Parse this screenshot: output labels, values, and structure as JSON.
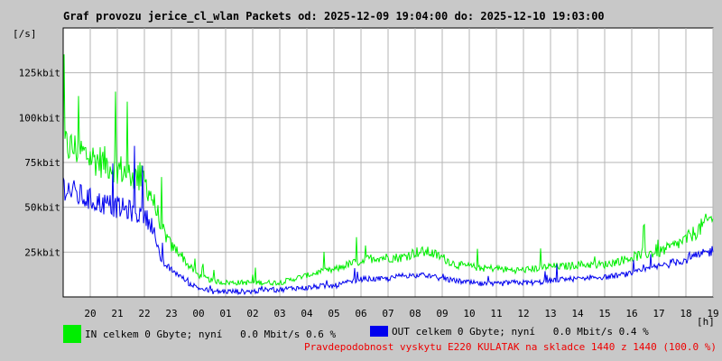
{
  "chart_data": {
    "type": "line",
    "title": "Graf provozu jerice_cl_wlan Packets od: 2025-12-09 19:04:00 do: 2025-12-10 19:03:00",
    "ylabel": "[/s]",
    "xlabel": "[h]",
    "grid": true,
    "ylim": [
      0,
      150
    ],
    "xlim": [
      0,
      24
    ],
    "y_ticks": [
      25,
      50,
      75,
      100,
      125
    ],
    "y_tick_labels": [
      "25kbit",
      "50kbit",
      "75kbit",
      "100kbit",
      "125kbit"
    ],
    "x_ticks": [
      1,
      2,
      3,
      4,
      5,
      6,
      7,
      8,
      9,
      10,
      11,
      12,
      13,
      14,
      15,
      16,
      17,
      18,
      19,
      20,
      21,
      22,
      23,
      24
    ],
    "x_tick_labels": [
      "20",
      "21",
      "22",
      "23",
      "00",
      "01",
      "02",
      "03",
      "04",
      "05",
      "06",
      "07",
      "08",
      "09",
      "10",
      "11",
      "12",
      "13",
      "14",
      "15",
      "16",
      "17",
      "18",
      "19"
    ],
    "series": [
      {
        "color": "#00ee00",
        "x": [
          0,
          0.5,
          1,
          1.5,
          2,
          2.5,
          3,
          3.3,
          3.6,
          4,
          4.3,
          4.6,
          5,
          5.5,
          6,
          6.5,
          7,
          7.5,
          8,
          8.5,
          9,
          9.5,
          10,
          10.5,
          11,
          11.5,
          12,
          12.5,
          13,
          13.5,
          14,
          14.5,
          15,
          15.5,
          16,
          16.5,
          17,
          17.5,
          18,
          18.5,
          19,
          19.5,
          20,
          20.5,
          21,
          21.5,
          22,
          22.5,
          23,
          23.5,
          24
        ],
        "y": [
          85,
          82,
          78,
          75,
          72,
          68,
          65,
          55,
          40,
          28,
          25,
          18,
          12,
          9,
          8,
          8,
          8,
          8,
          8,
          10,
          12,
          14,
          15,
          18,
          20,
          22,
          22,
          22,
          25,
          25,
          22,
          18,
          17,
          16,
          16,
          15,
          15,
          16,
          17,
          17,
          18,
          18,
          18,
          20,
          22,
          24,
          25,
          28,
          32,
          38,
          45
        ]
      },
      {
        "color": "#0000ee",
        "x": [
          0,
          0.5,
          1,
          1.5,
          2,
          2.5,
          3,
          3.3,
          3.6,
          4,
          4.3,
          4.6,
          5,
          5.5,
          6,
          6.5,
          7,
          7.5,
          8,
          8.5,
          9,
          9.5,
          10,
          10.5,
          11,
          11.5,
          12,
          12.5,
          13,
          13.5,
          14,
          14.5,
          15,
          15.5,
          16,
          16.5,
          17,
          17.5,
          18,
          18.5,
          19,
          19.5,
          20,
          20.5,
          21,
          21.5,
          22,
          22.5,
          23,
          23.5,
          24
        ],
        "y": [
          62,
          57,
          54,
          52,
          50,
          48,
          45,
          40,
          20,
          15,
          12,
          8,
          5,
          3,
          3,
          3,
          3,
          4,
          4,
          5,
          5,
          6,
          6,
          8,
          10,
          10,
          10,
          12,
          12,
          12,
          10,
          9,
          8,
          7,
          7,
          8,
          8,
          8,
          9,
          10,
          10,
          11,
          11,
          12,
          13,
          15,
          17,
          19,
          21,
          23,
          26
        ]
      }
    ]
  },
  "legend": [
    {
      "color": "#00ee00",
      "text": "IN celkem 0 Gbyte; nyní   0.0 Mbit/s 0.6 %"
    },
    {
      "color": "#0000ee",
      "text": "OUT celkem 0 Gbyte; nyní   0.0 Mbit/s 0.4 %"
    }
  ],
  "note": {
    "text": "Pravdepodobnost vyskytu E220 KULATAK na skladce 1440 z 1440 (100.0 %)",
    "color": "#ee0000"
  }
}
